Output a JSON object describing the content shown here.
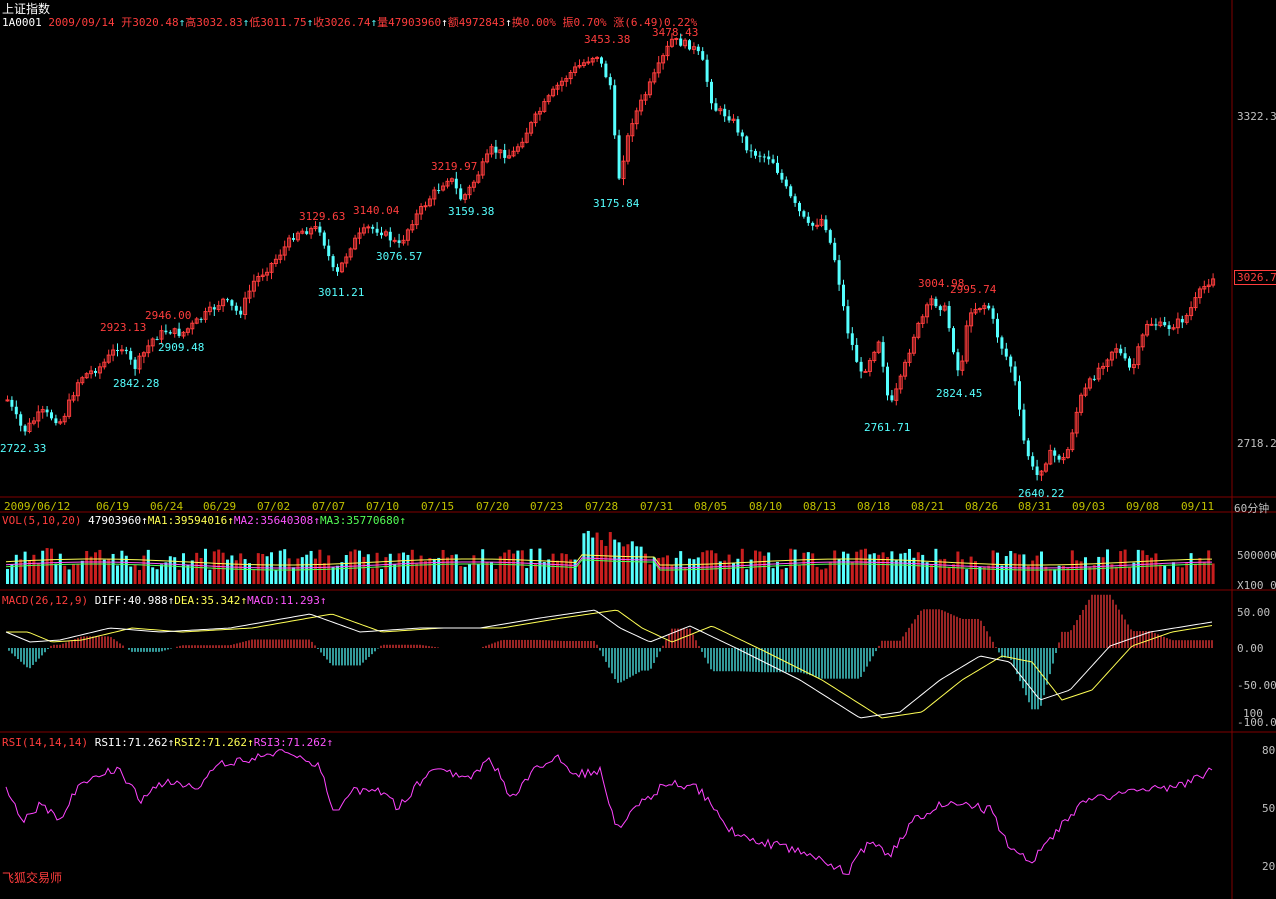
{
  "header": {
    "title": "上证指数",
    "code": "1A0001",
    "date": "2009/09/14",
    "open": "开3020.48",
    "high": "高3032.83",
    "low": "低3011.75",
    "close": "收3026.74",
    "volume": "量47903960",
    "amount": "额4972843",
    "turnover": "换0.00%",
    "amplitude": "振0.70%",
    "change": "涨(6.49)0.22%"
  },
  "price_axis": [
    "3322.3",
    "2718.2"
  ],
  "last_price_tag": "3026.7",
  "annotations_high": [
    "3453.38",
    "3478.43",
    "3219.97",
    "3140.04",
    "3129.63",
    "2946.00",
    "2923.13",
    "3004.98",
    "2995.74"
  ],
  "annotations_low": [
    "3175.84",
    "3159.38",
    "3076.57",
    "3011.21",
    "2909.48",
    "2842.28",
    "2722.33",
    "2761.71",
    "2824.45",
    "2640.22"
  ],
  "dates": [
    "2009/06/12",
    "06/19",
    "06/24",
    "06/29",
    "07/02",
    "07/07",
    "07/10",
    "07/15",
    "07/20",
    "07/23",
    "07/28",
    "07/31",
    "08/05",
    "08/10",
    "08/13",
    "08/18",
    "08/21",
    "08/26",
    "08/31",
    "09/03",
    "09/08",
    "09/11"
  ],
  "period": "60分钟",
  "volume_panel": {
    "name": "VOL(5,10,20)",
    "value": "47903960",
    "ma1": "MA1:39594016",
    "ma2": "MA2:35640308",
    "ma3": "MA3:35770680",
    "axis": [
      "500000",
      "X100 0"
    ]
  },
  "macd_panel": {
    "name": "MACD(26,12,9)",
    "diff": "DIFF:40.988",
    "dea": "DEA:35.342",
    "macd": "MACD:11.293",
    "axis": [
      "50.00",
      "0.00",
      "-50.00",
      "100",
      "-100.0"
    ]
  },
  "rsi_panel": {
    "name": "RSI(14,14,14)",
    "rsi1": "RSI1:71.262",
    "rsi2": "RSI2:71.262",
    "rsi3": "RSI3:71.262",
    "axis": [
      "80",
      "50",
      "20"
    ]
  },
  "arrow": "↑",
  "brand": "飞狐交易师",
  "colors": {
    "up": "#ff3d3d",
    "down": "#55ffff",
    "diff": "#ffffff",
    "dea": "#ffff55",
    "rsi": "#ff44ff",
    "ma2": "#ff55ff",
    "ma3": "#55ff55",
    "grid": "#800000"
  }
}
